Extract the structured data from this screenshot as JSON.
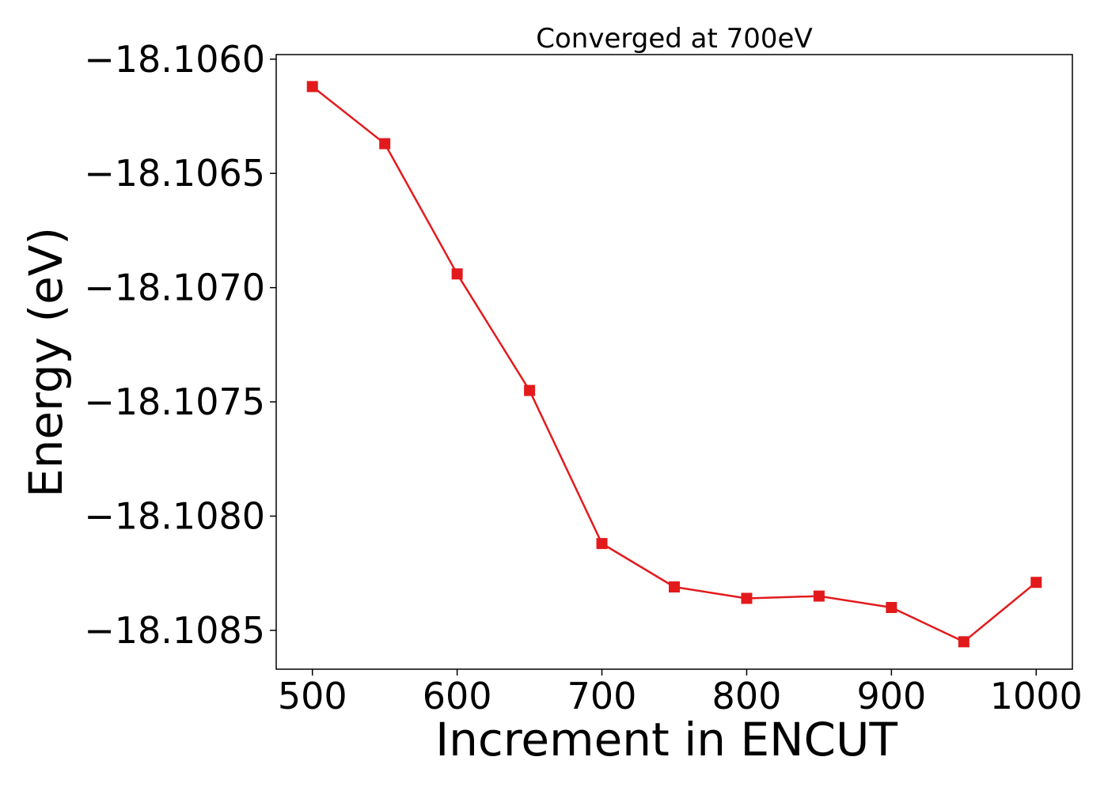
{
  "chart_data": {
    "type": "line",
    "title": "Converged at 700eV",
    "xlabel": "Increment in ENCUT",
    "ylabel": "Energy (eV)",
    "xlim": [
      475,
      1025
    ],
    "ylim": [
      -18.10867,
      -18.10598
    ],
    "x_ticks": [
      500,
      600,
      700,
      800,
      900,
      1000
    ],
    "x_tick_labels": [
      "500",
      "600",
      "700",
      "800",
      "900",
      "1000"
    ],
    "y_ticks": [
      -18.106,
      -18.1065,
      -18.107,
      -18.1075,
      -18.108,
      -18.1085
    ],
    "y_tick_labels": [
      "−18.1060",
      "−18.1065",
      "−18.1070",
      "−18.1075",
      "−18.1080",
      "−18.1085"
    ],
    "grid": false,
    "legend": "none",
    "series": [
      {
        "color": "#e31a1c",
        "marker": "square",
        "x": [
          500,
          550,
          600,
          650,
          700,
          750,
          800,
          850,
          900,
          950,
          1000
        ],
        "y": [
          -18.10612,
          -18.10637,
          -18.10694,
          -18.10745,
          -18.10812,
          -18.10831,
          -18.10836,
          -18.10835,
          -18.1084,
          -18.10855,
          -18.10829
        ]
      }
    ]
  }
}
